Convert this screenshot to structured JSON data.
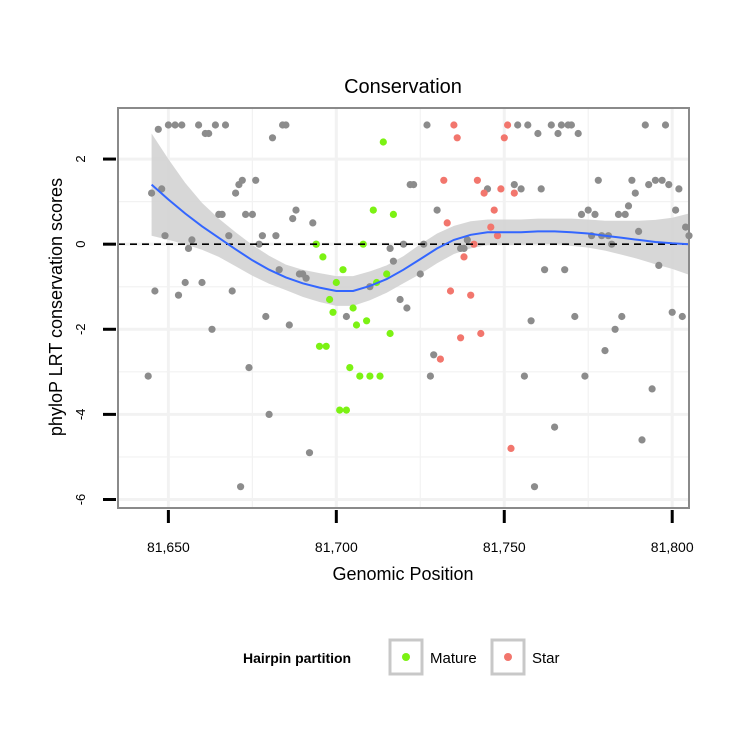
{
  "chart_data": {
    "type": "scatter",
    "title": "Conservation",
    "xlabel": "Genomic Position",
    "ylabel": "phyloP LRT conservation scores",
    "xlim": [
      81635,
      81805
    ],
    "ylim": [
      -6.2,
      3.2
    ],
    "x_ticks": [
      81650,
      81700,
      81750,
      81800
    ],
    "x_tick_labels": [
      "81,650",
      "81,700",
      "81,750",
      "81,800"
    ],
    "y_ticks": [
      -6,
      -4,
      -2,
      0,
      2
    ],
    "y_tick_labels": [
      "-6",
      "-4",
      "-2",
      "0",
      "2"
    ],
    "grid": true,
    "reference_line": {
      "y": 0,
      "style": "dashed"
    },
    "legend": {
      "title": "Hairpin partition",
      "placement": "bottom",
      "entries": [
        {
          "label": "Mature",
          "color": "#7cf213"
        },
        {
          "label": "Star",
          "color": "#f2766d"
        }
      ]
    },
    "colors": {
      "other": "#8c8c8c",
      "mature": "#7cf213",
      "star": "#f2766d",
      "smooth": "#3366ff",
      "ribbon": "#d3d3d3",
      "panel_border": "#8a8a8a",
      "grid": "#f2f2f2"
    },
    "series": [
      {
        "group": "other",
        "points": [
          [
            81644,
            -3.1
          ],
          [
            81645,
            1.2
          ],
          [
            81646,
            -1.1
          ],
          [
            81647,
            2.7
          ],
          [
            81648,
            1.3
          ],
          [
            81649,
            0.2
          ],
          [
            81650,
            2.8
          ],
          [
            81652,
            2.8
          ],
          [
            81653,
            -1.2
          ],
          [
            81654,
            2.8
          ],
          [
            81655,
            -0.9
          ],
          [
            81656,
            -0.1
          ],
          [
            81657,
            0.1
          ],
          [
            81659,
            2.8
          ],
          [
            81660,
            -0.9
          ],
          [
            81661,
            2.6
          ],
          [
            81662,
            2.6
          ],
          [
            81663,
            -2.0
          ],
          [
            81664,
            2.8
          ],
          [
            81665,
            0.7
          ],
          [
            81666,
            0.7
          ],
          [
            81667,
            2.8
          ],
          [
            81668,
            0.2
          ],
          [
            81669,
            -1.1
          ],
          [
            81670,
            1.2
          ],
          [
            81671,
            1.4
          ],
          [
            81671.5,
            -5.7
          ],
          [
            81672,
            1.5
          ],
          [
            81673,
            0.7
          ],
          [
            81674,
            -2.9
          ],
          [
            81675,
            0.7
          ],
          [
            81676,
            1.5
          ],
          [
            81677,
            0.0
          ],
          [
            81678,
            0.2
          ],
          [
            81679,
            -1.7
          ],
          [
            81680,
            -4.0
          ],
          [
            81681,
            2.5
          ],
          [
            81682,
            0.2
          ],
          [
            81683,
            -0.6
          ],
          [
            81684,
            2.8
          ],
          [
            81685,
            2.8
          ],
          [
            81686,
            -1.9
          ],
          [
            81687,
            0.6
          ],
          [
            81688,
            0.8
          ],
          [
            81689,
            -0.7
          ],
          [
            81690,
            -0.7
          ],
          [
            81691,
            -0.8
          ],
          [
            81692,
            -4.9
          ],
          [
            81693,
            0.5
          ],
          [
            81694,
            0.0
          ],
          [
            81703,
            -1.7
          ],
          [
            81710,
            -1.0
          ],
          [
            81716,
            -0.1
          ],
          [
            81717,
            -0.4
          ],
          [
            81719,
            -1.3
          ],
          [
            81720,
            0.0
          ],
          [
            81721,
            -1.5
          ],
          [
            81722,
            1.4
          ],
          [
            81723,
            1.4
          ],
          [
            81725,
            -0.7
          ],
          [
            81726,
            0.0
          ],
          [
            81727,
            2.8
          ],
          [
            81728,
            -3.1
          ],
          [
            81729,
            -2.6
          ],
          [
            81730,
            0.8
          ],
          [
            81737,
            -0.1
          ],
          [
            81738,
            -0.1
          ],
          [
            81739,
            0.1
          ],
          [
            81745,
            1.3
          ],
          [
            81753,
            1.4
          ],
          [
            81754,
            2.8
          ],
          [
            81755,
            1.3
          ],
          [
            81756,
            -3.1
          ],
          [
            81757,
            2.8
          ],
          [
            81758,
            -1.8
          ],
          [
            81759,
            -5.7
          ],
          [
            81760,
            2.6
          ],
          [
            81761,
            1.3
          ],
          [
            81762,
            -0.6
          ],
          [
            81764,
            2.8
          ],
          [
            81765,
            -4.3
          ],
          [
            81766,
            2.6
          ],
          [
            81767,
            2.8
          ],
          [
            81768,
            -0.6
          ],
          [
            81769,
            2.8
          ],
          [
            81770,
            2.8
          ],
          [
            81771,
            -1.7
          ],
          [
            81772,
            2.6
          ],
          [
            81773,
            0.7
          ],
          [
            81774,
            -3.1
          ],
          [
            81775,
            0.8
          ],
          [
            81776,
            0.2
          ],
          [
            81777,
            0.7
          ],
          [
            81778,
            1.5
          ],
          [
            81779,
            0.2
          ],
          [
            81780,
            -2.5
          ],
          [
            81781,
            0.2
          ],
          [
            81782,
            0.0
          ],
          [
            81783,
            -2.0
          ],
          [
            81784,
            0.7
          ],
          [
            81785,
            -1.7
          ],
          [
            81786,
            0.7
          ],
          [
            81787,
            0.9
          ],
          [
            81788,
            1.5
          ],
          [
            81789,
            1.2
          ],
          [
            81790,
            0.3
          ],
          [
            81791,
            -4.6
          ],
          [
            81792,
            2.8
          ],
          [
            81793,
            1.4
          ],
          [
            81794,
            -3.4
          ],
          [
            81795,
            1.5
          ],
          [
            81796,
            -0.5
          ],
          [
            81797,
            1.5
          ],
          [
            81798,
            2.8
          ],
          [
            81799,
            1.4
          ],
          [
            81800,
            -1.6
          ],
          [
            81801,
            0.8
          ],
          [
            81802,
            1.3
          ],
          [
            81803,
            -1.7
          ],
          [
            81804,
            0.4
          ],
          [
            81805,
            0.2
          ]
        ]
      },
      {
        "group": "mature",
        "points": [
          [
            81694,
            0.0
          ],
          [
            81695,
            -2.4
          ],
          [
            81696,
            -0.3
          ],
          [
            81697,
            -2.4
          ],
          [
            81698,
            -1.3
          ],
          [
            81699,
            -1.6
          ],
          [
            81700,
            -0.9
          ],
          [
            81701,
            -3.9
          ],
          [
            81702,
            -0.6
          ],
          [
            81703,
            -3.9
          ],
          [
            81704,
            -2.9
          ],
          [
            81705,
            -1.5
          ],
          [
            81706,
            -1.9
          ],
          [
            81707,
            -3.1
          ],
          [
            81708,
            0.0
          ],
          [
            81709,
            -1.8
          ],
          [
            81710,
            -3.1
          ],
          [
            81711,
            0.8
          ],
          [
            81712,
            -0.9
          ],
          [
            81713,
            -3.1
          ],
          [
            81714,
            2.4
          ],
          [
            81715,
            -0.7
          ],
          [
            81716,
            -2.1
          ],
          [
            81717,
            0.7
          ]
        ]
      },
      {
        "group": "star",
        "points": [
          [
            81731,
            -2.7
          ],
          [
            81732,
            1.5
          ],
          [
            81733,
            0.5
          ],
          [
            81734,
            -1.1
          ],
          [
            81735,
            2.8
          ],
          [
            81736,
            2.5
          ],
          [
            81737,
            -2.2
          ],
          [
            81738,
            -0.3
          ],
          [
            81740,
            -1.2
          ],
          [
            81741,
            0.0
          ],
          [
            81742,
            1.5
          ],
          [
            81743,
            -2.1
          ],
          [
            81744,
            1.2
          ],
          [
            81746,
            0.4
          ],
          [
            81747,
            0.8
          ],
          [
            81748,
            0.2
          ],
          [
            81749,
            1.3
          ],
          [
            81750,
            2.5
          ],
          [
            81751,
            2.8
          ],
          [
            81752,
            -4.8
          ],
          [
            81753,
            1.2
          ]
        ]
      }
    ],
    "smooth": {
      "x": [
        81645,
        81650,
        81655,
        81660,
        81665,
        81670,
        81675,
        81680,
        81685,
        81690,
        81695,
        81700,
        81705,
        81710,
        81715,
        81720,
        81725,
        81730,
        81735,
        81740,
        81745,
        81750,
        81755,
        81760,
        81765,
        81770,
        81775,
        81780,
        81785,
        81790,
        81795,
        81800,
        81805
      ],
      "y": [
        1.4,
        1.05,
        0.72,
        0.42,
        0.15,
        -0.12,
        -0.38,
        -0.6,
        -0.78,
        -0.92,
        -1.02,
        -1.1,
        -1.1,
        -0.98,
        -0.82,
        -0.6,
        -0.35,
        -0.1,
        0.1,
        0.22,
        0.28,
        0.28,
        0.28,
        0.3,
        0.3,
        0.28,
        0.25,
        0.2,
        0.15,
        0.1,
        0.05,
        0.02,
        0.0
      ],
      "se": [
        1.2,
        0.95,
        0.72,
        0.55,
        0.45,
        0.4,
        0.36,
        0.33,
        0.3,
        0.32,
        0.34,
        0.35,
        0.35,
        0.34,
        0.32,
        0.32,
        0.35,
        0.35,
        0.33,
        0.32,
        0.3,
        0.3,
        0.3,
        0.3,
        0.3,
        0.32,
        0.33,
        0.35,
        0.4,
        0.45,
        0.52,
        0.6,
        0.72
      ]
    }
  }
}
